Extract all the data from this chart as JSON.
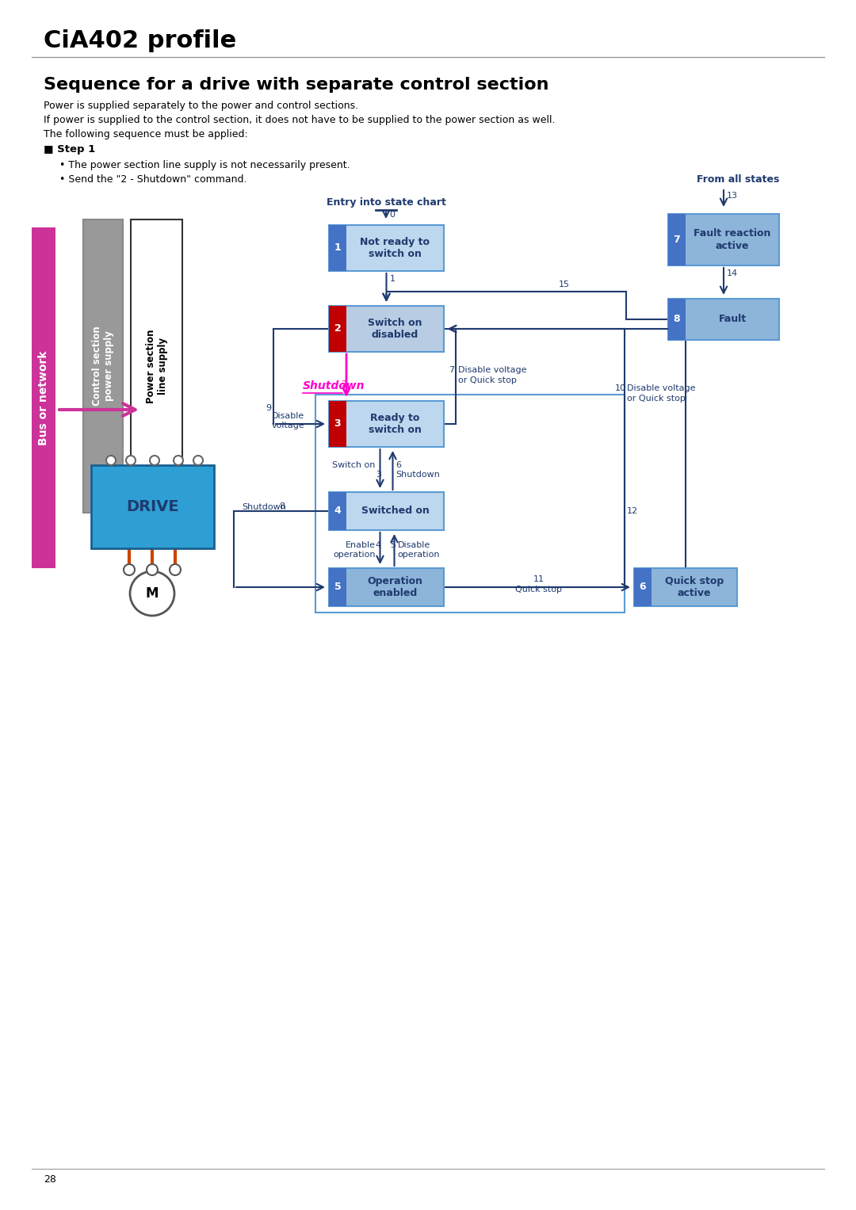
{
  "title": "CiA402 profile",
  "subtitle": "Sequence for a drive with separate control section",
  "desc_lines": [
    "Power is supplied separately to the power and control sections.",
    "If power is supplied to the control section, it does not have to be supplied to the power section as well.",
    "The following sequence must be applied:"
  ],
  "step1_header": "Step 1",
  "step1_bullets": [
    "The power section line supply is not necessarily present.",
    "Send the \"2 - Shutdown\" command."
  ],
  "bg_color": "#ffffff",
  "blue_dark": "#1f3a6e",
  "blue_medium": "#4472c4",
  "blue_light": "#9dc3e6",
  "blue_box": "#8db4d9",
  "blue_box_light": "#bdd7ee",
  "red_box": "#c00000",
  "pink_bar": "#cc3399",
  "drive_blue": "#2e9fd4",
  "arrow_blue": "#1f3a6e",
  "shutdown_pink": "#ff00cc",
  "page_num": "28"
}
